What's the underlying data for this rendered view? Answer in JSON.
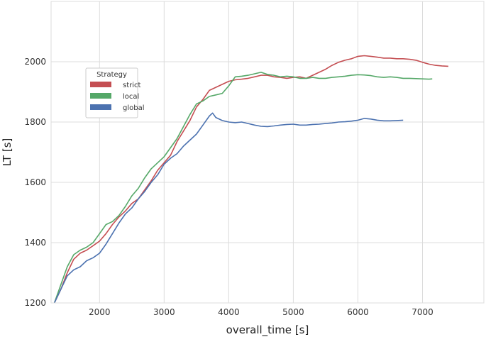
{
  "chart_data": {
    "type": "line",
    "title": "",
    "xlabel": "overall_time [s]",
    "ylabel": "LT [s]",
    "xlim": [
      1250,
      7950
    ],
    "ylim": [
      1200,
      2200
    ],
    "xticks": [
      2000,
      3000,
      4000,
      5000,
      6000,
      7000
    ],
    "yticks": [
      1200,
      1400,
      1600,
      1800,
      2000
    ],
    "grid": true,
    "legend": {
      "title": "Strategy",
      "placement": "upper-left"
    },
    "series": [
      {
        "name": "strict",
        "color": "#c44e52",
        "x": [
          1300,
          1400,
          1500,
          1600,
          1700,
          1800,
          1900,
          2000,
          2100,
          2200,
          2300,
          2400,
          2500,
          2600,
          2700,
          2800,
          2900,
          3000,
          3100,
          3200,
          3300,
          3400,
          3500,
          3600,
          3700,
          3800,
          3900,
          4000,
          4100,
          4200,
          4300,
          4400,
          4500,
          4600,
          4700,
          4800,
          4900,
          5000,
          5100,
          5200,
          5300,
          5400,
          5500,
          5600,
          5700,
          5800,
          5900,
          6000,
          6100,
          6200,
          6300,
          6400,
          6500,
          6600,
          6700,
          6800,
          6900,
          7000,
          7100,
          7200,
          7300,
          7400
        ],
        "y": [
          1200,
          1245,
          1300,
          1345,
          1365,
          1375,
          1390,
          1405,
          1430,
          1460,
          1485,
          1505,
          1530,
          1545,
          1575,
          1605,
          1640,
          1665,
          1690,
          1735,
          1770,
          1805,
          1850,
          1875,
          1905,
          1915,
          1925,
          1935,
          1940,
          1942,
          1945,
          1950,
          1955,
          1955,
          1950,
          1948,
          1945,
          1948,
          1950,
          1945,
          1955,
          1965,
          1975,
          1988,
          1998,
          2005,
          2010,
          2018,
          2020,
          2018,
          2015,
          2012,
          2012,
          2010,
          2010,
          2008,
          2005,
          1998,
          1992,
          1988,
          1986,
          1985
        ]
      },
      {
        "name": "local",
        "color": "#55a868",
        "x": [
          1300,
          1400,
          1500,
          1600,
          1700,
          1800,
          1900,
          2000,
          2100,
          2200,
          2300,
          2400,
          2500,
          2600,
          2700,
          2800,
          2900,
          3000,
          3100,
          3200,
          3300,
          3400,
          3500,
          3600,
          3700,
          3800,
          3900,
          4000,
          4100,
          4200,
          4300,
          4400,
          4500,
          4600,
          4700,
          4800,
          4900,
          5000,
          5100,
          5200,
          5300,
          5400,
          5500,
          5600,
          5700,
          5800,
          5900,
          6000,
          6100,
          6200,
          6300,
          6400,
          6500,
          6600,
          6700,
          6800,
          6900,
          7000,
          7100,
          7150
        ],
        "y": [
          1200,
          1260,
          1320,
          1360,
          1375,
          1385,
          1400,
          1430,
          1460,
          1470,
          1490,
          1520,
          1555,
          1580,
          1615,
          1645,
          1665,
          1685,
          1715,
          1745,
          1785,
          1825,
          1860,
          1870,
          1885,
          1890,
          1895,
          1920,
          1950,
          1952,
          1955,
          1960,
          1965,
          1958,
          1955,
          1950,
          1952,
          1950,
          1945,
          1945,
          1948,
          1945,
          1945,
          1948,
          1950,
          1952,
          1955,
          1957,
          1956,
          1954,
          1950,
          1948,
          1950,
          1948,
          1945,
          1945,
          1944,
          1943,
          1942,
          1943
        ]
      },
      {
        "name": "global",
        "color": "#4c72b0",
        "x": [
          1300,
          1400,
          1500,
          1600,
          1700,
          1800,
          1900,
          2000,
          2100,
          2200,
          2300,
          2400,
          2500,
          2600,
          2700,
          2800,
          2900,
          3000,
          3100,
          3200,
          3300,
          3400,
          3500,
          3600,
          3700,
          3750,
          3800,
          3900,
          4000,
          4100,
          4200,
          4300,
          4400,
          4500,
          4600,
          4700,
          4800,
          4900,
          5000,
          5100,
          5200,
          5300,
          5400,
          5500,
          5600,
          5700,
          5800,
          5900,
          6000,
          6100,
          6200,
          6300,
          6400,
          6500,
          6600,
          6700
        ],
        "y": [
          1200,
          1245,
          1290,
          1310,
          1320,
          1340,
          1350,
          1365,
          1395,
          1430,
          1465,
          1495,
          1515,
          1545,
          1570,
          1600,
          1625,
          1660,
          1680,
          1695,
          1720,
          1740,
          1760,
          1790,
          1820,
          1830,
          1815,
          1805,
          1800,
          1798,
          1800,
          1795,
          1790,
          1786,
          1785,
          1787,
          1790,
          1792,
          1793,
          1790,
          1790,
          1792,
          1793,
          1795,
          1797,
          1800,
          1801,
          1803,
          1806,
          1812,
          1810,
          1806,
          1804,
          1804,
          1805,
          1806
        ]
      }
    ]
  }
}
